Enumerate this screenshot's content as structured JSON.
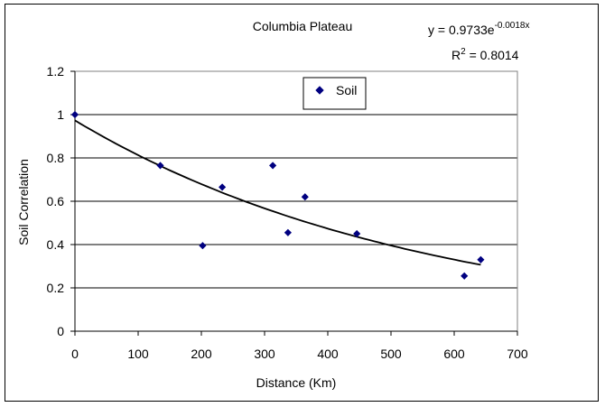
{
  "chart_data": {
    "type": "scatter",
    "title": "Columbia Plateau",
    "xlabel": "Distance (Km)",
    "ylabel": "Soil Correlation",
    "xlim": [
      0,
      700
    ],
    "ylim": [
      0,
      1.2
    ],
    "x_ticks": [
      0,
      100,
      200,
      300,
      400,
      500,
      600,
      700
    ],
    "y_ticks": [
      0,
      0.2,
      0.4,
      0.6,
      0.8,
      1,
      1.2
    ],
    "y_tick_labels": [
      "0",
      "0.2",
      "0.4",
      "0.6",
      "0.8",
      "1",
      "1.2"
    ],
    "grid": "horizontal",
    "legend_position": "top-center",
    "series": [
      {
        "name": "Soil",
        "color": "#000080",
        "marker": "diamond",
        "points": [
          {
            "x": 0,
            "y": 1.0
          },
          {
            "x": 135,
            "y": 0.765
          },
          {
            "x": 202,
            "y": 0.395
          },
          {
            "x": 233,
            "y": 0.665
          },
          {
            "x": 313,
            "y": 0.765
          },
          {
            "x": 337,
            "y": 0.455
          },
          {
            "x": 364,
            "y": 0.62
          },
          {
            "x": 446,
            "y": 0.45
          },
          {
            "x": 616,
            "y": 0.255
          },
          {
            "x": 642,
            "y": 0.33
          }
        ]
      }
    ],
    "trendline": {
      "type": "exponential",
      "a": 0.9733,
      "b": -0.0018,
      "x_range": [
        0,
        642
      ],
      "equation_main": "y = 0.9733e",
      "equation_exponent": "-0.0018x",
      "r2_prefix": "R",
      "r2_superscript": "2",
      "r2_value": " = 0.8014"
    }
  }
}
